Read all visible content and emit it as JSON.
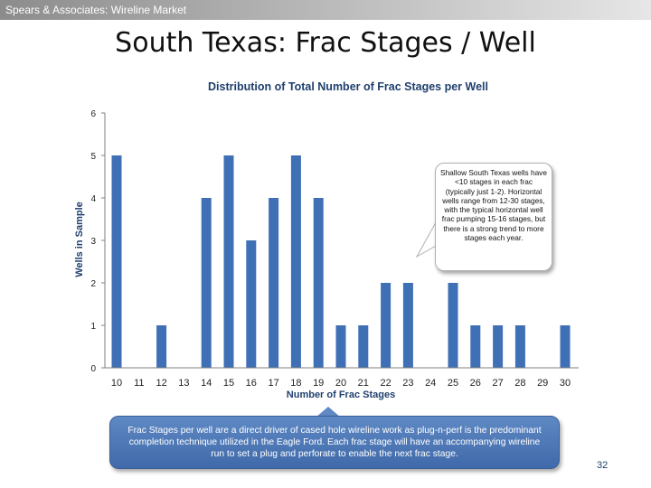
{
  "header": {
    "text": "Spears & Associates:  Wireline Market"
  },
  "slide": {
    "title": "South Texas:  Frac Stages / Well",
    "page_number": "32"
  },
  "chart_data": {
    "type": "bar",
    "title": "Distribution of Total Number of Frac Stages per Well",
    "xlabel": "Number of Frac Stages",
    "ylabel": "Wells in Sample",
    "categories": [
      "10",
      "11",
      "12",
      "13",
      "14",
      "15",
      "16",
      "17",
      "18",
      "19",
      "20",
      "21",
      "22",
      "23",
      "24",
      "25",
      "26",
      "27",
      "28",
      "29",
      "30"
    ],
    "values": [
      5,
      0,
      1,
      0,
      4,
      5,
      3,
      4,
      5,
      4,
      1,
      1,
      2,
      2,
      0,
      2,
      1,
      1,
      1,
      0,
      1
    ],
    "ylim": [
      0,
      6
    ],
    "yticks": [
      "0",
      "1",
      "2",
      "3",
      "4",
      "5",
      "6"
    ],
    "grid": false,
    "bar_color": "#3f6fb5"
  },
  "callout": {
    "text": "Shallow South Texas wells have <10 stages in each frac (typically just 1-2). Horizontal wells range from 12-30 stages, with the typical horizontal well frac pumping 15-16 stages, but there is a strong trend to more stages each year."
  },
  "note": {
    "text": "Frac Stages per well are a direct driver of cased hole wireline work as plug-n-perf is the predominant completion technique utilized in  the Eagle Ford.  Each frac stage will have an accompanying wireline run to set a plug and perforate to enable the next frac stage."
  },
  "colors": {
    "header_gradient_start": "#8c8c8c",
    "title_blue": "#1f3f6e",
    "note_blue": "#4a74b5"
  }
}
